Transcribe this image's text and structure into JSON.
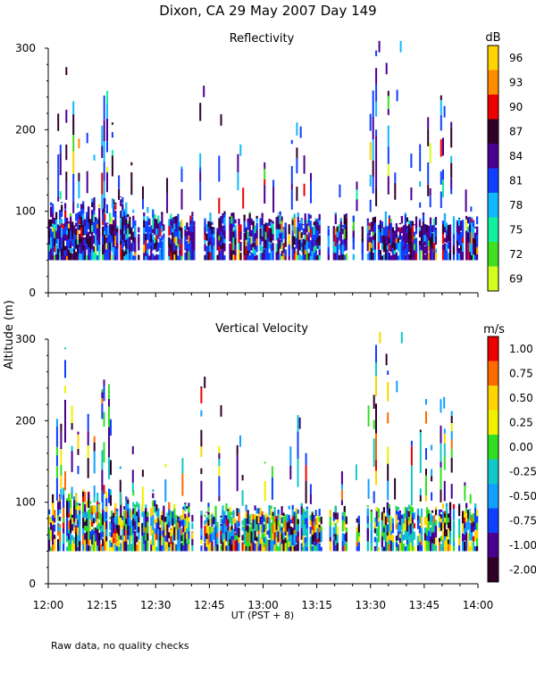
{
  "chart_data": {
    "type": "heatmap",
    "title": "Dixon, CA 29 May 2007  Day 149",
    "xlabel": "UT  (PST + 8)",
    "ylabel": "Altitude (m)",
    "footnote": "Raw data, no quality checks",
    "x_ticks": [
      "12:00",
      "12:15",
      "12:30",
      "12:45",
      "13:00",
      "13:15",
      "13:30",
      "13:45",
      "14:00"
    ],
    "x_range_minutes": [
      0,
      120
    ],
    "panels": [
      {
        "name": "reflectivity",
        "title": "Reflectivity",
        "unit": "dB",
        "ylim": [
          0,
          300
        ],
        "y_ticks": [
          "0",
          "100",
          "200",
          "300"
        ],
        "colorbar": {
          "labels": [
            "96",
            "93",
            "90",
            "87",
            "84",
            "81",
            "78",
            "75",
            "72",
            "69"
          ],
          "colors": [
            "#ffd400",
            "#ff8c00",
            "#ee0000",
            "#300028",
            "#4a0090",
            "#1040ff",
            "#10b8ff",
            "#10f0a0",
            "#40e020",
            "#d0ff20"
          ]
        }
      },
      {
        "name": "vertical-velocity",
        "title": "Vertical Velocity",
        "unit": "m/s",
        "ylim": [
          0,
          300
        ],
        "y_ticks": [
          "0",
          "100",
          "200",
          "300"
        ],
        "colorbar": {
          "labels": [
            "1.00",
            "0.75",
            "0.50",
            "0.25",
            "0.00",
            "-0.25",
            "-0.50",
            "-0.75",
            "-1.00",
            "-2.00"
          ],
          "colors": [
            "#ee0000",
            "#ff6a00",
            "#ffd400",
            "#f0f000",
            "#30e020",
            "#10c8c8",
            "#10a0ff",
            "#1040ff",
            "#4a0090",
            "#300028"
          ]
        }
      }
    ]
  }
}
